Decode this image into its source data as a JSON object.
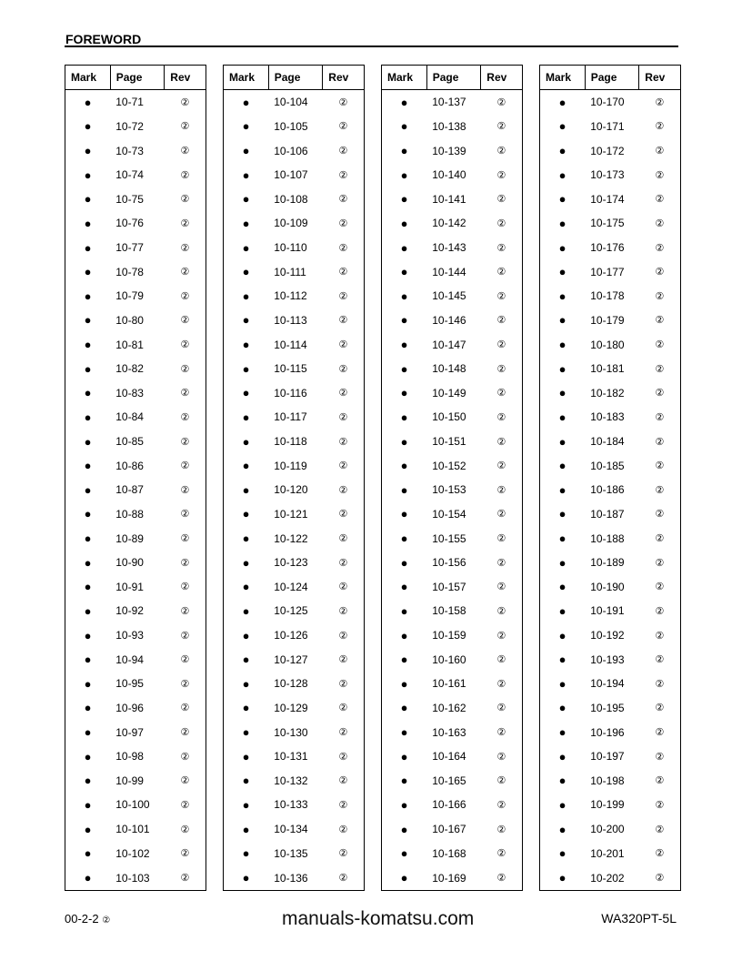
{
  "header": {
    "title": "FOREWORD"
  },
  "columns": {
    "mark": "Mark",
    "page": "Page",
    "rev": "Rev"
  },
  "symbols": {
    "mark": "●",
    "rev": "②"
  },
  "tables": [
    {
      "pages": [
        "10-71",
        "10-72",
        "10-73",
        "10-74",
        "10-75",
        "10-76",
        "10-77",
        "10-78",
        "10-79",
        "10-80",
        "10-81",
        "10-82",
        "10-83",
        "10-84",
        "10-85",
        "10-86",
        "10-87",
        "10-88",
        "10-89",
        "10-90",
        "10-91",
        "10-92",
        "10-93",
        "10-94",
        "10-95",
        "10-96",
        "10-97",
        "10-98",
        "10-99",
        "10-100",
        "10-101",
        "10-102",
        "10-103"
      ]
    },
    {
      "pages": [
        "10-104",
        "10-105",
        "10-106",
        "10-107",
        "10-108",
        "10-109",
        "10-110",
        "10-111",
        "10-112",
        "10-113",
        "10-114",
        "10-115",
        "10-116",
        "10-117",
        "10-118",
        "10-119",
        "10-120",
        "10-121",
        "10-122",
        "10-123",
        "10-124",
        "10-125",
        "10-126",
        "10-127",
        "10-128",
        "10-129",
        "10-130",
        "10-131",
        "10-132",
        "10-133",
        "10-134",
        "10-135",
        "10-136"
      ]
    },
    {
      "pages": [
        "10-137",
        "10-138",
        "10-139",
        "10-140",
        "10-141",
        "10-142",
        "10-143",
        "10-144",
        "10-145",
        "10-146",
        "10-147",
        "10-148",
        "10-149",
        "10-150",
        "10-151",
        "10-152",
        "10-153",
        "10-154",
        "10-155",
        "10-156",
        "10-157",
        "10-158",
        "10-159",
        "10-160",
        "10-161",
        "10-162",
        "10-163",
        "10-164",
        "10-165",
        "10-166",
        "10-167",
        "10-168",
        "10-169"
      ]
    },
    {
      "pages": [
        "10-170",
        "10-171",
        "10-172",
        "10-173",
        "10-174",
        "10-175",
        "10-176",
        "10-177",
        "10-178",
        "10-179",
        "10-180",
        "10-181",
        "10-182",
        "10-183",
        "10-184",
        "10-185",
        "10-186",
        "10-187",
        "10-188",
        "10-189",
        "10-190",
        "10-191",
        "10-192",
        "10-193",
        "10-194",
        "10-195",
        "10-196",
        "10-197",
        "10-198",
        "10-199",
        "10-200",
        "10-201",
        "10-202"
      ]
    }
  ],
  "watermark": "manuals-komatsu.com",
  "footer": {
    "page": "00-2-2",
    "rev": "②",
    "model": "WA320PT-5L"
  }
}
